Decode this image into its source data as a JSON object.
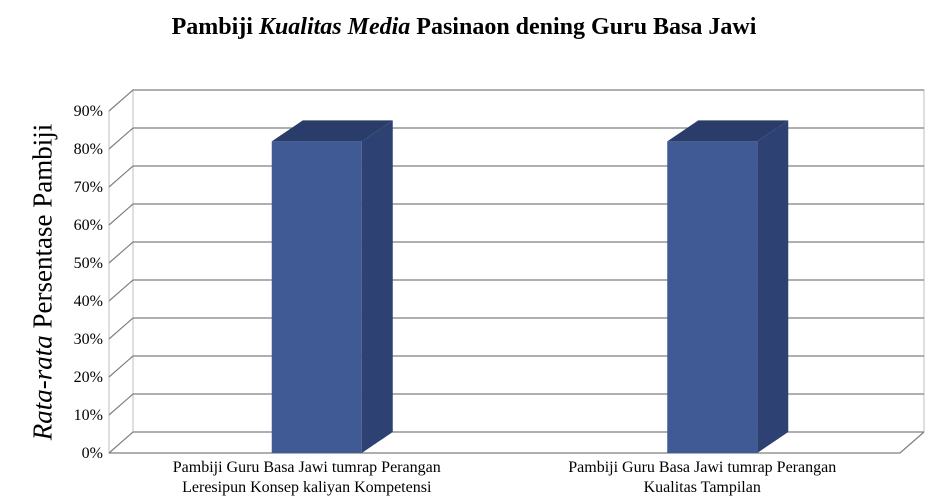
{
  "title_parts": [
    {
      "text": "Pambiji ",
      "italic": false
    },
    {
      "text": "Kualitas Media",
      "italic": true
    },
    {
      "text": " Pasinaon dening Guru Basa Jawi",
      "italic": false
    }
  ],
  "ylabel_parts": [
    {
      "text": "Rata-rata",
      "italic": true
    },
    {
      "text": " Persentase Pambiji",
      "italic": false
    }
  ],
  "colors": {
    "bar_front": "#3f5a94",
    "bar_side": "#2d4272",
    "bar_top": "#2a3d6a",
    "grid": "#7f7f7f"
  },
  "chart_data": {
    "type": "bar",
    "title": "Pambiji Kualitas Media Pasinaon dening Guru Basa Jawi",
    "ylabel": "Rata-rata Persentase Pambiji",
    "xlabel": "",
    "categories": [
      [
        "Pambiji Guru Basa Jawi tumrap Perangan",
        "Leresipun Konsep kaliyan Kompetensi"
      ],
      [
        "Pambiji Guru Basa Jawi tumrap Perangan",
        "Kualitas Tampilan"
      ]
    ],
    "values": [
      0.82,
      0.82
    ],
    "ylim": [
      0,
      0.9
    ],
    "yticks": [
      0,
      0.1,
      0.2,
      0.3,
      0.4,
      0.5,
      0.6,
      0.7,
      0.8,
      0.9
    ],
    "ytick_labels": [
      "0%",
      "10%",
      "20%",
      "30%",
      "40%",
      "50%",
      "60%",
      "70%",
      "80%",
      "90%"
    ],
    "grid": true,
    "legend": "none",
    "style": "3d"
  }
}
